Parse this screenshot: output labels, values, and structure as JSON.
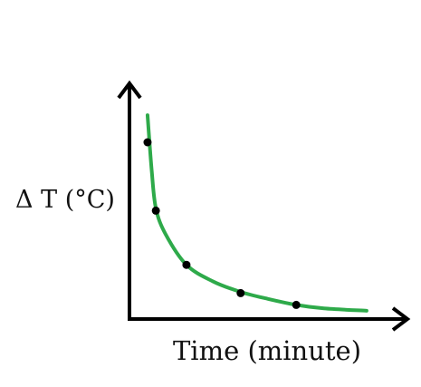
{
  "chart_data": {
    "type": "scatter",
    "xlabel": "Time (minute)",
    "ylabel": "Δ T (°C)",
    "xlim": [
      0,
      10
    ],
    "ylim": [
      0,
      10
    ],
    "series": [
      {
        "x": [
          0.65,
          0.95,
          2.05,
          4.0,
          6.0
        ],
        "values": [
          7.5,
          4.6,
          2.3,
          1.1,
          0.6
        ],
        "color": "#000000"
      }
    ],
    "curve": {
      "x": [
        0.65,
        0.8,
        0.95,
        1.3,
        2.05,
        3.0,
        4.0,
        5.0,
        6.0,
        7.0,
        8.53
      ],
      "values": [
        8.65,
        6.3,
        4.7,
        3.6,
        2.3,
        1.6,
        1.15,
        0.85,
        0.6,
        0.45,
        0.35
      ],
      "color": "#2eaa4a"
    }
  }
}
